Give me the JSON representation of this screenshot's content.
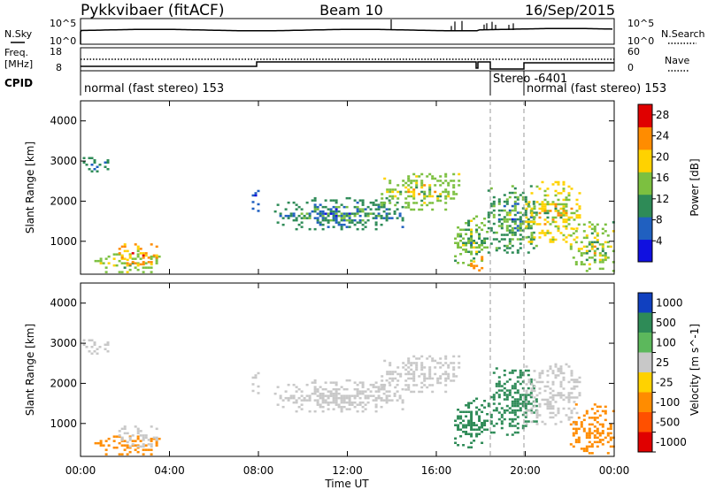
{
  "header": {
    "station": "Pykkvibaer (fitACF)",
    "beam": "Beam 10",
    "date": "16/Sep/2015"
  },
  "noise_panel": {
    "left_label": "N.Sky",
    "right_label": "N.Search",
    "ticks": [
      "10^5",
      "10^0"
    ]
  },
  "freq_panel": {
    "left_label_1": "Freq.",
    "left_label_2": "[MHz]",
    "right_label": "Nave",
    "left_ticks": [
      "18",
      "8"
    ],
    "right_ticks": [
      "60",
      "0"
    ]
  },
  "cpid": {
    "label": "CPID",
    "segments": [
      {
        "start_hour": 0,
        "text": "normal (fast stereo) 153"
      },
      {
        "start_hour": 18.4,
        "text": "Stereo -6401"
      },
      {
        "start_hour": 20.0,
        "text": "normal (fast stereo) 153"
      }
    ]
  },
  "chart_data": [
    {
      "type": "heatmap",
      "panel": "power",
      "ylabel": "Slant Range [km]",
      "yticks": [
        "1000",
        "2000",
        "3000",
        "4000"
      ],
      "ylim": [
        180,
        4500
      ],
      "xlim": [
        0,
        24
      ],
      "colorbar_label": "Power [dB]",
      "colorbar_ticks": [
        "4",
        "8",
        "12",
        "16",
        "20",
        "24",
        "28"
      ],
      "colorbar_range": [
        0,
        30
      ],
      "colors": [
        "#1010e0",
        "#2060c0",
        "#2e8b57",
        "#7cc040",
        "#ffd200",
        "#ff8c00",
        "#e00000"
      ],
      "echo_bands": [
        {
          "x": [
            0.1,
            1.2
          ],
          "y": [
            2750,
            3100
          ],
          "v": 10
        },
        {
          "x": [
            0.5,
            3.6
          ],
          "y": [
            250,
            700
          ],
          "v": 16
        },
        {
          "x": [
            1.7,
            3.4
          ],
          "y": [
            450,
            950
          ],
          "v": 22
        },
        {
          "x": [
            7.7,
            8.0
          ],
          "y": [
            1700,
            2500
          ],
          "v": 6
        },
        {
          "x": [
            8.7,
            14.5
          ],
          "y": [
            1300,
            2100
          ],
          "v": 10
        },
        {
          "x": [
            13.5,
            17.0
          ],
          "y": [
            1800,
            2700
          ],
          "v": 16
        },
        {
          "x": [
            16.8,
            18.3
          ],
          "y": [
            400,
            1700
          ],
          "v": 14
        },
        {
          "x": [
            17.4,
            18.0
          ],
          "y": [
            280,
            800
          ],
          "v": 24
        },
        {
          "x": [
            18.3,
            20.5
          ],
          "y": [
            700,
            2400
          ],
          "v": 12
        },
        {
          "x": [
            20.0,
            22.5
          ],
          "y": [
            1000,
            2500
          ],
          "v": 18
        },
        {
          "x": [
            22.0,
            24.0
          ],
          "y": [
            250,
            1500
          ],
          "v": 16
        }
      ]
    },
    {
      "type": "heatmap",
      "panel": "velocity",
      "ylabel": "Slant Range [km]",
      "yticks": [
        "1000",
        "2000",
        "3000",
        "4000"
      ],
      "ylim": [
        180,
        4500
      ],
      "xlim": [
        0,
        24
      ],
      "xticks": [
        "00:00",
        "04:00",
        "08:00",
        "12:00",
        "16:00",
        "20:00",
        "00:00"
      ],
      "xlabel": "Time UT",
      "colorbar_label": "Velocity [m s^-1]",
      "colorbar_ticks": [
        "1000",
        "500",
        "100",
        "25",
        "-25",
        "-100",
        "-500",
        "-1000"
      ],
      "colors": [
        "#1040c0",
        "#2e8b57",
        "#5cb85c",
        "#c8c8c8",
        "#ffd200",
        "#ff8c00",
        "#ff5000",
        "#e00000"
      ],
      "echo_bands": [
        {
          "x": [
            0.1,
            1.2
          ],
          "y": [
            2750,
            3100
          ],
          "v": 0
        },
        {
          "x": [
            0.5,
            3.6
          ],
          "y": [
            250,
            700
          ],
          "v": -150
        },
        {
          "x": [
            1.7,
            3.4
          ],
          "y": [
            450,
            950
          ],
          "v": 0
        },
        {
          "x": [
            7.7,
            8.0
          ],
          "y": [
            1700,
            2500
          ],
          "v": 0
        },
        {
          "x": [
            8.7,
            14.5
          ],
          "y": [
            1300,
            2100
          ],
          "v": 0
        },
        {
          "x": [
            13.5,
            17.0
          ],
          "y": [
            1800,
            2700
          ],
          "v": 10
        },
        {
          "x": [
            16.8,
            18.3
          ],
          "y": [
            400,
            1700
          ],
          "v": 200
        },
        {
          "x": [
            18.3,
            20.5
          ],
          "y": [
            700,
            2400
          ],
          "v": 300
        },
        {
          "x": [
            20.0,
            22.5
          ],
          "y": [
            1000,
            2500
          ],
          "v": 0
        },
        {
          "x": [
            22.0,
            24.0
          ],
          "y": [
            250,
            1500
          ],
          "v": -300
        }
      ]
    }
  ]
}
